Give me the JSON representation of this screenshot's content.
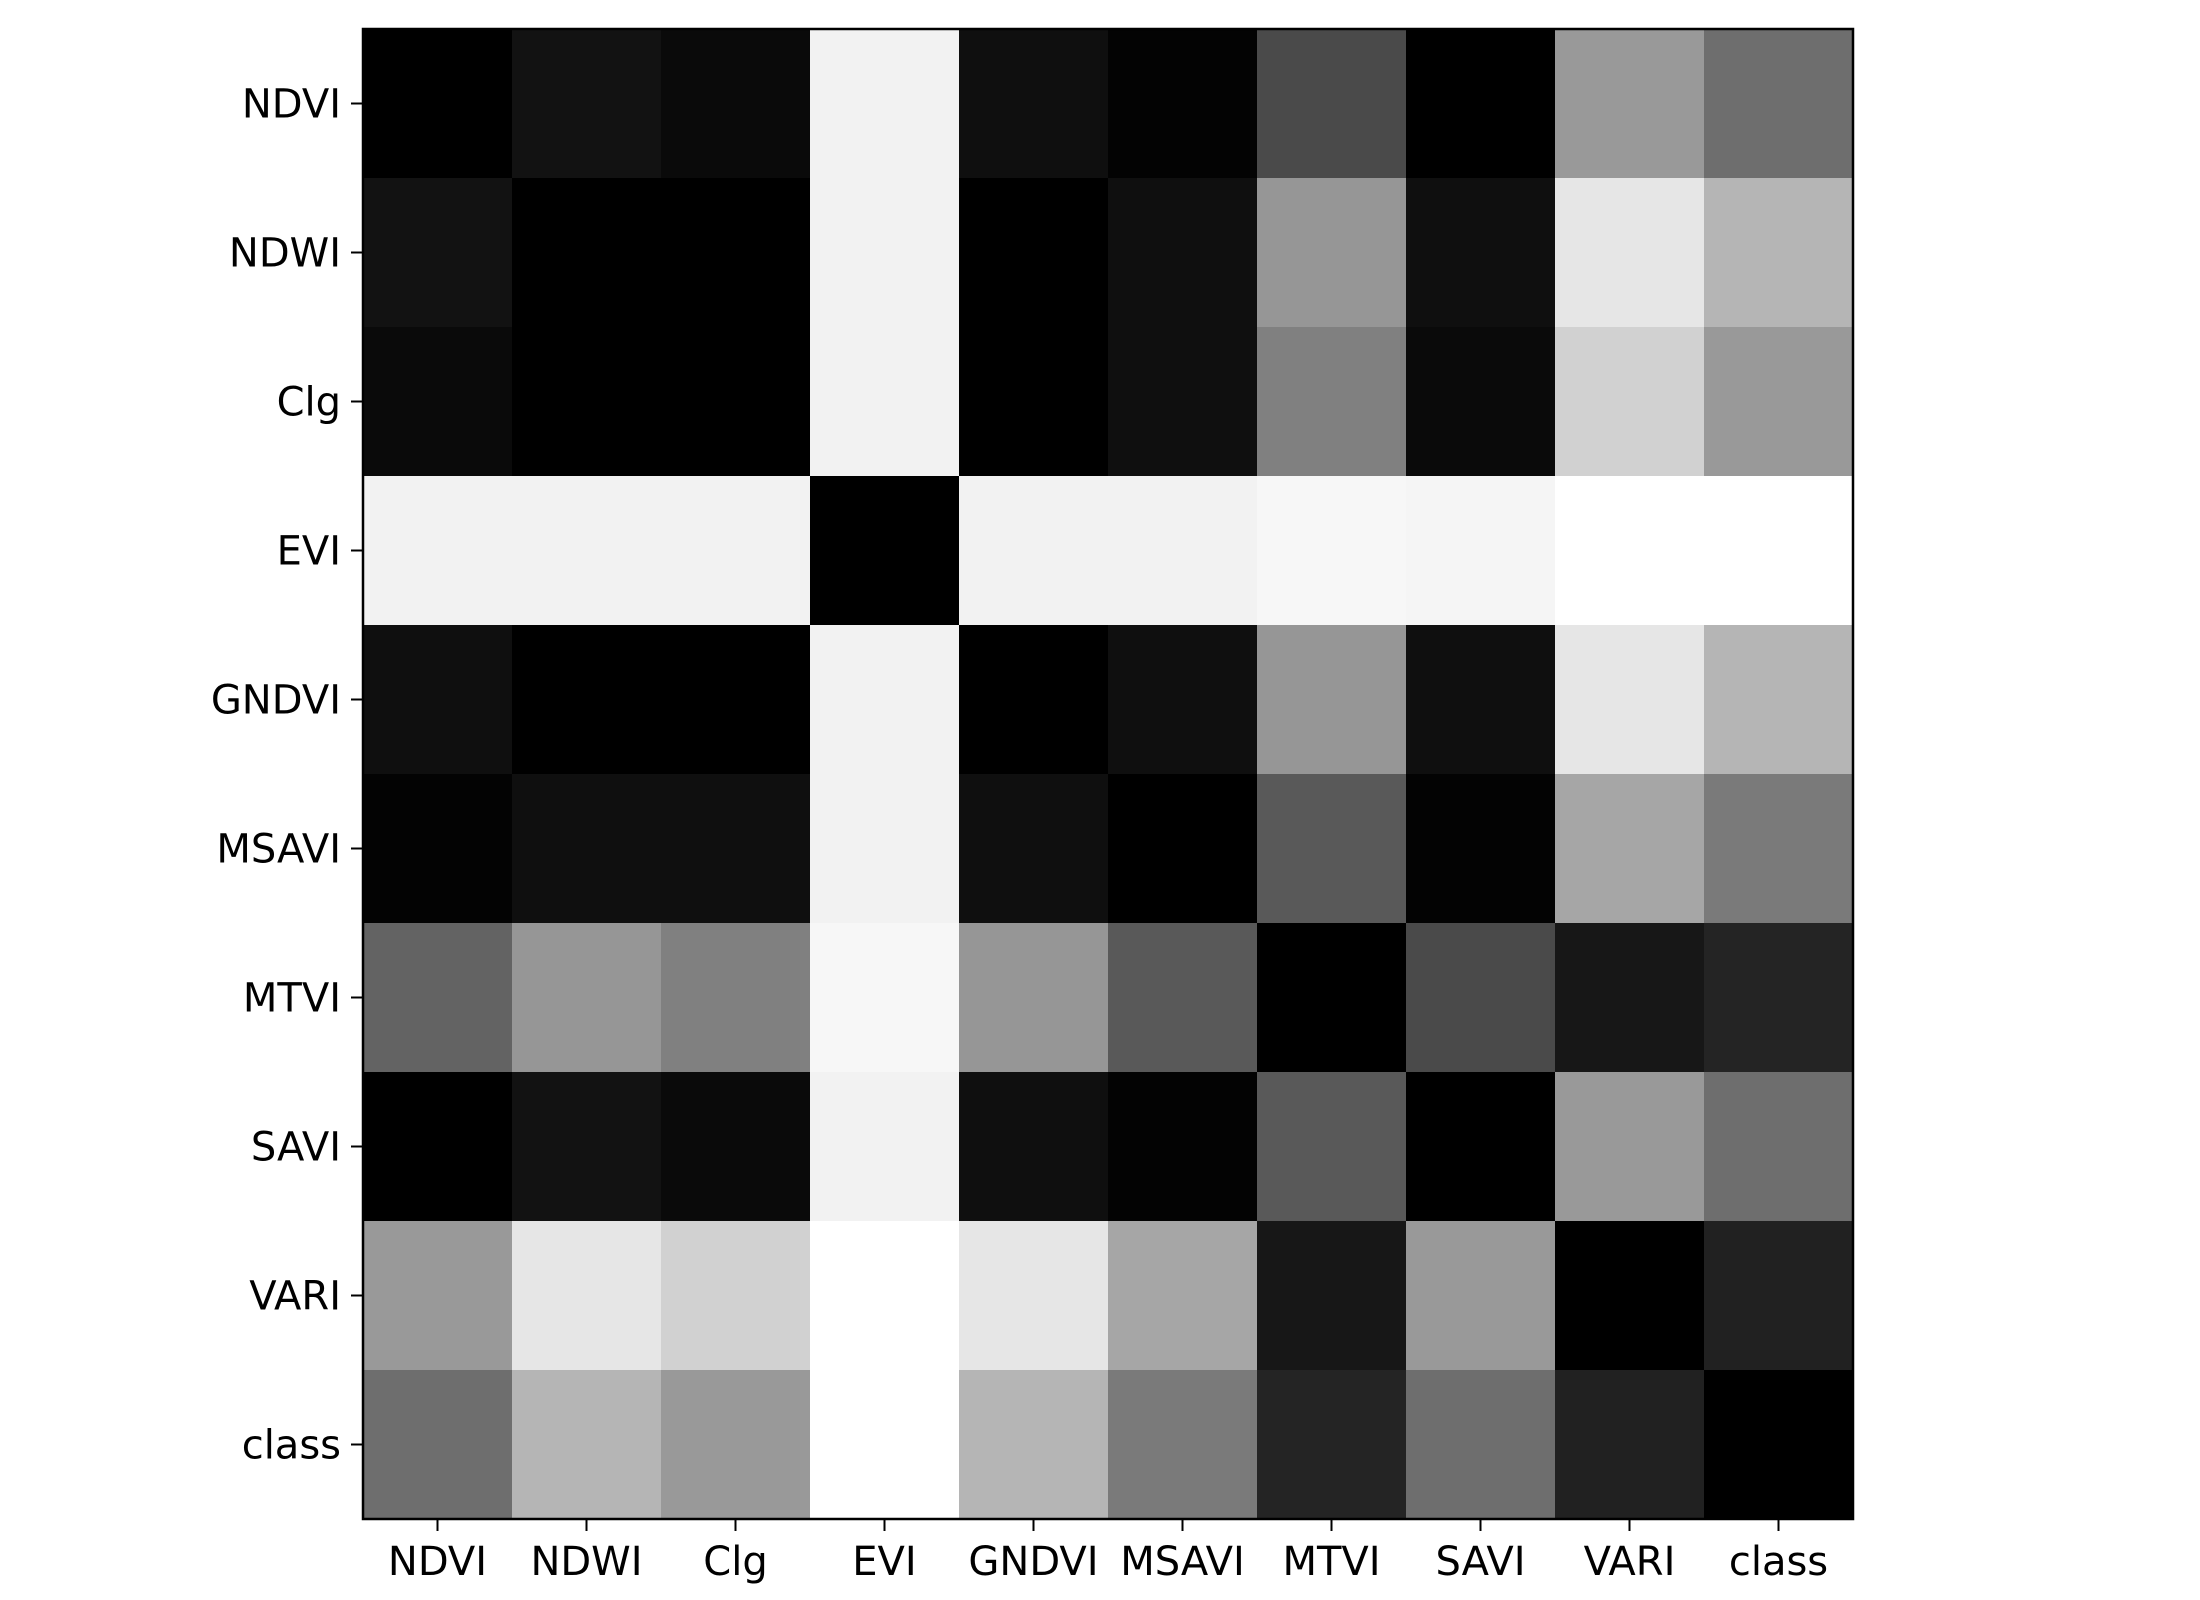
{
  "chart_data": {
    "type": "heatmap",
    "title": "",
    "xlabel": "",
    "ylabel": "",
    "x_labels": [
      "NDVI",
      "NDWI",
      "Clg",
      "EVI",
      "GNDVI",
      "MSAVI",
      "MTVI",
      "SAVI",
      "VARI",
      "class"
    ],
    "y_labels": [
      "NDVI",
      "NDWI",
      "Clg",
      "EVI",
      "GNDVI",
      "MSAVI",
      "MTVI",
      "SAVI",
      "VARI",
      "class"
    ],
    "colormap": "gray",
    "color_range": [
      0,
      1
    ],
    "grid": false,
    "legend": "none",
    "values": [
      [
        0.0,
        0.07,
        0.04,
        0.95,
        0.06,
        0.01,
        0.29,
        0.0,
        0.6,
        0.43
      ],
      [
        0.07,
        0.0,
        0.0,
        0.95,
        0.0,
        0.06,
        0.59,
        0.06,
        0.9,
        0.71
      ],
      [
        0.04,
        0.0,
        0.0,
        0.95,
        0.0,
        0.06,
        0.5,
        0.04,
        0.82,
        0.6
      ],
      [
        0.95,
        0.95,
        0.95,
        0.0,
        0.95,
        0.95,
        0.97,
        0.96,
        1.0,
        1.0
      ],
      [
        0.06,
        0.0,
        0.0,
        0.95,
        0.0,
        0.06,
        0.59,
        0.06,
        0.9,
        0.71
      ],
      [
        0.01,
        0.06,
        0.06,
        0.95,
        0.06,
        0.0,
        0.35,
        0.01,
        0.65,
        0.48
      ],
      [
        0.39,
        0.59,
        0.5,
        0.97,
        0.59,
        0.35,
        0.0,
        0.29,
        0.09,
        0.14
      ],
      [
        0.0,
        0.07,
        0.04,
        0.95,
        0.06,
        0.01,
        0.35,
        0.0,
        0.6,
        0.43
      ],
      [
        0.6,
        0.9,
        0.82,
        1.0,
        0.9,
        0.65,
        0.09,
        0.6,
        0.0,
        0.13
      ],
      [
        0.43,
        0.71,
        0.6,
        1.0,
        0.71,
        0.48,
        0.14,
        0.43,
        0.13,
        0.0
      ]
    ]
  }
}
